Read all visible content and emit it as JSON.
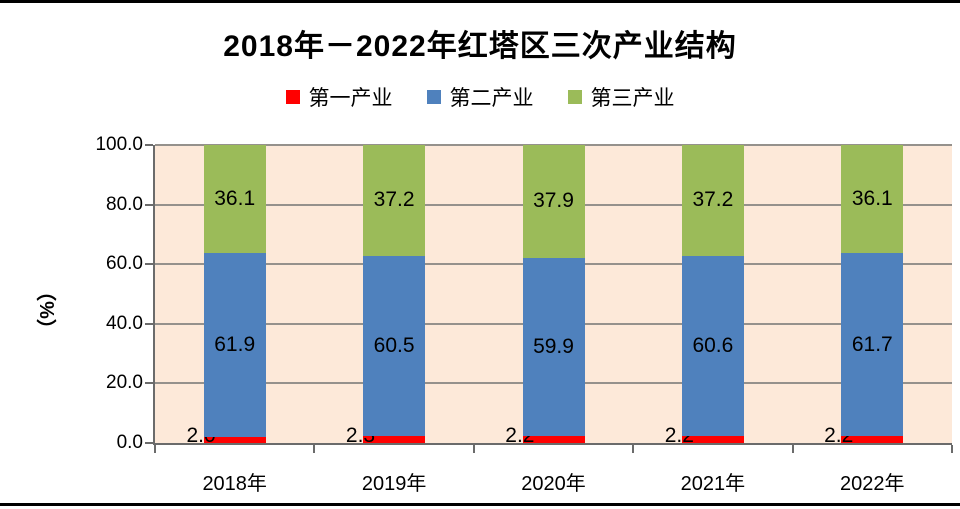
{
  "title": "2018年－2022年红塔区三次产业结构",
  "y_axis_title": "（%）",
  "chart_data": {
    "type": "bar",
    "stacked": true,
    "title": "2018年－2022年红塔区三次产业结构",
    "categories": [
      "2018年",
      "2019年",
      "2020年",
      "2021年",
      "2022年"
    ],
    "series": [
      {
        "name": "第一产业",
        "color": "#FF0000",
        "values": [
          2.0,
          2.3,
          2.2,
          2.2,
          2.2
        ]
      },
      {
        "name": "第二产业",
        "color": "#4F81BD",
        "values": [
          61.9,
          60.5,
          59.9,
          60.6,
          61.7
        ]
      },
      {
        "name": "第三产业",
        "color": "#9BBB59",
        "values": [
          36.1,
          37.2,
          37.9,
          37.2,
          36.1
        ]
      }
    ],
    "xlabel": "",
    "ylabel": "（%）",
    "ylim": [
      0,
      100
    ],
    "yticks": [
      {
        "v": 0,
        "label": "0.0"
      },
      {
        "v": 20,
        "label": "20.0"
      },
      {
        "v": 40,
        "label": "40.0"
      },
      {
        "v": 60,
        "label": "60.0"
      },
      {
        "v": 80,
        "label": "80.0"
      },
      {
        "v": 100,
        "label": "100.0"
      }
    ],
    "grid": true,
    "legend_position": "top",
    "plot_background": "#FDE9D9",
    "gridline_color": "#95918C",
    "axis_color": "#6B6B6B",
    "frame_border_color": "#000000",
    "data_label_decimals": 1
  }
}
